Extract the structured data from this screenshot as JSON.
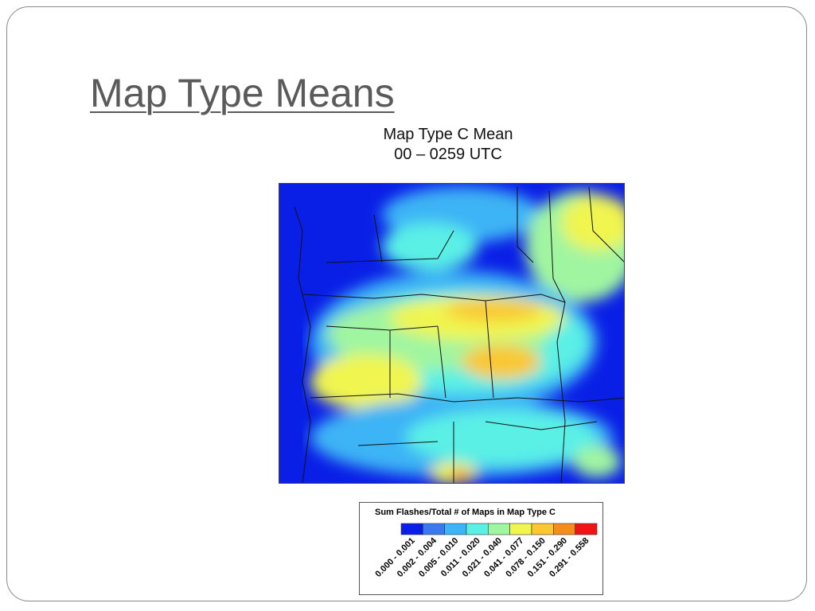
{
  "title": "Map Type Means",
  "map": {
    "title_lines": [
      "Map Type C Mean",
      "00 – 0259 UTC"
    ]
  },
  "legend": {
    "title": "Sum Flashes/Total # of Maps in Map Type C",
    "items": [
      {
        "label": "0.000 - 0.001",
        "color": "#0a1fe6"
      },
      {
        "label": "0.002 - 0.004",
        "color": "#3c78f0"
      },
      {
        "label": "0.005 - 0.010",
        "color": "#3cb4f5"
      },
      {
        "label": "0.011 - 0.020",
        "color": "#5af0e6"
      },
      {
        "label": "0.021 - 0.040",
        "color": "#a0f5a0"
      },
      {
        "label": "0.041 - 0.077",
        "color": "#f0f550"
      },
      {
        "label": "0.078 - 0.150",
        "color": "#fac832"
      },
      {
        "label": "0.151 - 0.290",
        "color": "#f58c1e"
      },
      {
        "label": "0.291 - 0.558",
        "color": "#f01414"
      }
    ]
  }
}
